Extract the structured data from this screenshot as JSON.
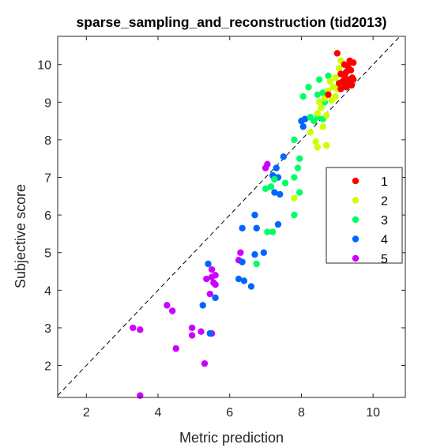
{
  "chart_data": {
    "type": "scatter",
    "title": "sparse_sampling_and_reconstruction (tid2013)",
    "xlabel": "Metric prediction",
    "ylabel": "Subjective score",
    "xlim": [
      1.2,
      10.9
    ],
    "ylim": [
      1.15,
      10.75
    ],
    "xticks": [
      2,
      4,
      6,
      8,
      10
    ],
    "yticks": [
      2,
      3,
      4,
      5,
      6,
      7,
      8,
      9,
      10
    ],
    "grid": false,
    "reference_line": "y = x (dashed black)",
    "legend_position": "right",
    "series": [
      {
        "name": "1",
        "color": "#ff0000",
        "points": [
          [
            9.0,
            10.3
          ],
          [
            9.2,
            10.0
          ],
          [
            9.3,
            9.95
          ],
          [
            9.35,
            10.1
          ],
          [
            9.45,
            10.05
          ],
          [
            9.25,
            9.8
          ],
          [
            9.38,
            9.85
          ],
          [
            9.1,
            9.75
          ],
          [
            9.2,
            9.7
          ],
          [
            9.3,
            9.6
          ],
          [
            9.42,
            9.65
          ],
          [
            9.15,
            9.55
          ],
          [
            9.05,
            9.5
          ],
          [
            9.22,
            9.45
          ],
          [
            9.35,
            9.5
          ],
          [
            9.25,
            9.4
          ],
          [
            9.45,
            9.6
          ],
          [
            9.4,
            9.45
          ],
          [
            9.1,
            9.35
          ],
          [
            8.75,
            9.2
          ]
        ]
      },
      {
        "name": "2",
        "color": "#ccff00",
        "points": [
          [
            9.1,
            10.1
          ],
          [
            9.05,
            9.9
          ],
          [
            8.95,
            9.65
          ],
          [
            9.2,
            9.65
          ],
          [
            8.8,
            9.55
          ],
          [
            8.9,
            9.4
          ],
          [
            9.0,
            9.35
          ],
          [
            8.75,
            9.3
          ],
          [
            8.95,
            9.15
          ],
          [
            8.85,
            9.05
          ],
          [
            8.65,
            9.1
          ],
          [
            8.5,
            9.0
          ],
          [
            8.55,
            8.85
          ],
          [
            8.45,
            8.7
          ],
          [
            8.7,
            8.65
          ],
          [
            8.6,
            8.35
          ],
          [
            8.25,
            8.2
          ],
          [
            8.4,
            7.95
          ],
          [
            8.45,
            7.8
          ],
          [
            8.7,
            7.85
          ],
          [
            7.8,
            6.45
          ]
        ]
      },
      {
        "name": "3",
        "color": "#00ff66",
        "points": [
          [
            8.5,
            9.6
          ],
          [
            8.2,
            9.4
          ],
          [
            8.75,
            9.7
          ],
          [
            8.6,
            9.25
          ],
          [
            8.45,
            9.2
          ],
          [
            8.05,
            9.15
          ],
          [
            8.65,
            9.0
          ],
          [
            8.25,
            8.6
          ],
          [
            8.45,
            8.6
          ],
          [
            8.6,
            8.55
          ],
          [
            8.35,
            8.5
          ],
          [
            7.8,
            8.0
          ],
          [
            7.95,
            7.5
          ],
          [
            7.9,
            7.25
          ],
          [
            7.8,
            7.0
          ],
          [
            7.95,
            6.6
          ],
          [
            7.25,
            6.95
          ],
          [
            7.55,
            6.85
          ],
          [
            7.15,
            6.75
          ],
          [
            7.0,
            6.7
          ],
          [
            7.8,
            6.0
          ],
          [
            7.2,
            5.55
          ],
          [
            7.05,
            5.55
          ],
          [
            6.75,
            4.7
          ]
        ]
      },
      {
        "name": "4",
        "color": "#0066ff",
        "points": [
          [
            8.0,
            8.5
          ],
          [
            8.05,
            8.35
          ],
          [
            8.1,
            8.55
          ],
          [
            7.5,
            7.55
          ],
          [
            7.3,
            7.25
          ],
          [
            7.2,
            7.05
          ],
          [
            7.35,
            7.0
          ],
          [
            7.15,
            6.75
          ],
          [
            7.4,
            6.55
          ],
          [
            7.25,
            6.6
          ],
          [
            6.7,
            6.0
          ],
          [
            7.35,
            5.75
          ],
          [
            6.75,
            5.65
          ],
          [
            6.35,
            5.65
          ],
          [
            6.95,
            5.0
          ],
          [
            6.7,
            4.95
          ],
          [
            6.35,
            4.75
          ],
          [
            6.25,
            4.3
          ],
          [
            6.4,
            4.25
          ],
          [
            6.6,
            4.1
          ],
          [
            5.4,
            4.7
          ],
          [
            5.6,
            3.8
          ],
          [
            5.25,
            3.6
          ],
          [
            5.45,
            2.85
          ]
        ]
      },
      {
        "name": "5",
        "color": "#cc00ff",
        "points": [
          [
            7.05,
            7.35
          ],
          [
            7.0,
            7.25
          ],
          [
            6.3,
            5.0
          ],
          [
            6.25,
            4.8
          ],
          [
            5.5,
            4.55
          ],
          [
            5.6,
            4.4
          ],
          [
            5.35,
            4.3
          ],
          [
            5.5,
            4.35
          ],
          [
            5.55,
            4.2
          ],
          [
            5.6,
            4.15
          ],
          [
            5.45,
            3.9
          ],
          [
            4.25,
            3.6
          ],
          [
            4.4,
            3.45
          ],
          [
            3.3,
            3.0
          ],
          [
            3.5,
            2.95
          ],
          [
            4.95,
            3.0
          ],
          [
            5.2,
            2.9
          ],
          [
            5.5,
            2.85
          ],
          [
            4.95,
            2.8
          ],
          [
            4.5,
            2.45
          ],
          [
            5.3,
            2.05
          ],
          [
            3.5,
            1.2
          ]
        ]
      }
    ]
  }
}
